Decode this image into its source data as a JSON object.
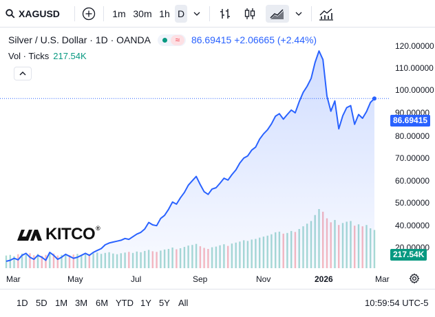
{
  "toolbar": {
    "symbol": "XAGUSD",
    "intervals": [
      "1m",
      "30m",
      "1h",
      "D"
    ],
    "active_interval": "D"
  },
  "legend": {
    "title": "Silver / U.S. Dollar · 1D · OANDA",
    "price": "86.69415",
    "change": "+2.06665",
    "change_pct": "(+2.44%)",
    "change_text": "86.69415 +2.06665 (+2.44%)"
  },
  "volume": {
    "label": "Vol · Ticks",
    "value": "217.54K"
  },
  "price_axis": {
    "ticks": [
      "120.00000",
      "110.00000",
      "100.00000",
      "90.00000",
      "80.00000",
      "70.00000",
      "60.00000",
      "50.00000",
      "40.00000",
      "20.00000"
    ],
    "current_price_label": "86.69415",
    "current_volume_label": "217.54K"
  },
  "time_axis": {
    "ticks": [
      "Mar",
      "May",
      "Jul",
      "Sep",
      "Nov",
      "2026",
      "Mar"
    ]
  },
  "ranges": [
    "1D",
    "5D",
    "1M",
    "3M",
    "6M",
    "YTD",
    "1Y",
    "5Y",
    "All"
  ],
  "clock": "10:59:54 UTC-5",
  "watermark": "KITCO",
  "colors": {
    "line": "#2962ff",
    "volume": "#089981",
    "volume_down": "#f23645"
  },
  "chart_data": {
    "type": "line",
    "series": [
      {
        "values": [
          32,
          32.2,
          32.6,
          32.3,
          33.2,
          33.6,
          32.8,
          32.4,
          33.2,
          32.8,
          32.2,
          33.8,
          33.2,
          32.4,
          32.8,
          33.4,
          33.0,
          32.6,
          32.8,
          33.2,
          33.6,
          33.2,
          33.8,
          34.2,
          34.6,
          35.4,
          35.8,
          36.0,
          36.2,
          36.4,
          36.8,
          36.6,
          37.2,
          37.8,
          38.2,
          39.0,
          40.6,
          40.0,
          39.8,
          41.6,
          42.4,
          44.0,
          46.0,
          45.4,
          47.2,
          48.8,
          51.0,
          52.4,
          53.8,
          51.2,
          49.0,
          48.2,
          49.8,
          50.2,
          51.6,
          53.2,
          52.6,
          54.4,
          56.0,
          58.4,
          60.2,
          61.0,
          63.2,
          64.4,
          67.6,
          69.8,
          71.6,
          74.2,
          77.8,
          79.0,
          76.4,
          78.6,
          80.8,
          79.4,
          85.0,
          90.0,
          93.4,
          98.0,
          108.0,
          116.0,
          110.0,
          88.0,
          80.2,
          85.4,
          72.0,
          78.0,
          82.0,
          83.0,
          74.0,
          78.6,
          76.8,
          80.0,
          84.6,
          86.69
        ]
      }
    ],
    "volume": {
      "name": "Vol · Ticks",
      "values": [
        38,
        40,
        36,
        42,
        44,
        41,
        45,
        39,
        43,
        37,
        40,
        46,
        44,
        38,
        40,
        42,
        39,
        41,
        43,
        40,
        44,
        42,
        45,
        47,
        43,
        46,
        48,
        44,
        42,
        45,
        47,
        49,
        46,
        50,
        48,
        52,
        55,
        51,
        49,
        53,
        56,
        58,
        62,
        57,
        60,
        64,
        68,
        70,
        73,
        66,
        61,
        58,
        63,
        65,
        69,
        72,
        67,
        74,
        77,
        80,
        84,
        82,
        86,
        88,
        92,
        95,
        98,
        102,
        108,
        110,
        104,
        106,
        112,
        109,
        118,
        126,
        134,
        142,
        160,
        178,
        170,
        150,
        138,
        145,
        130,
        136,
        140,
        142,
        128,
        132,
        126,
        130,
        120,
        115
      ]
    },
    "x_start": "2025-02-20",
    "x_end": "2026-02-24",
    "ylim": [
      20,
      125
    ],
    "y_scale": "log",
    "grid": false,
    "last_price": 86.69415
  }
}
